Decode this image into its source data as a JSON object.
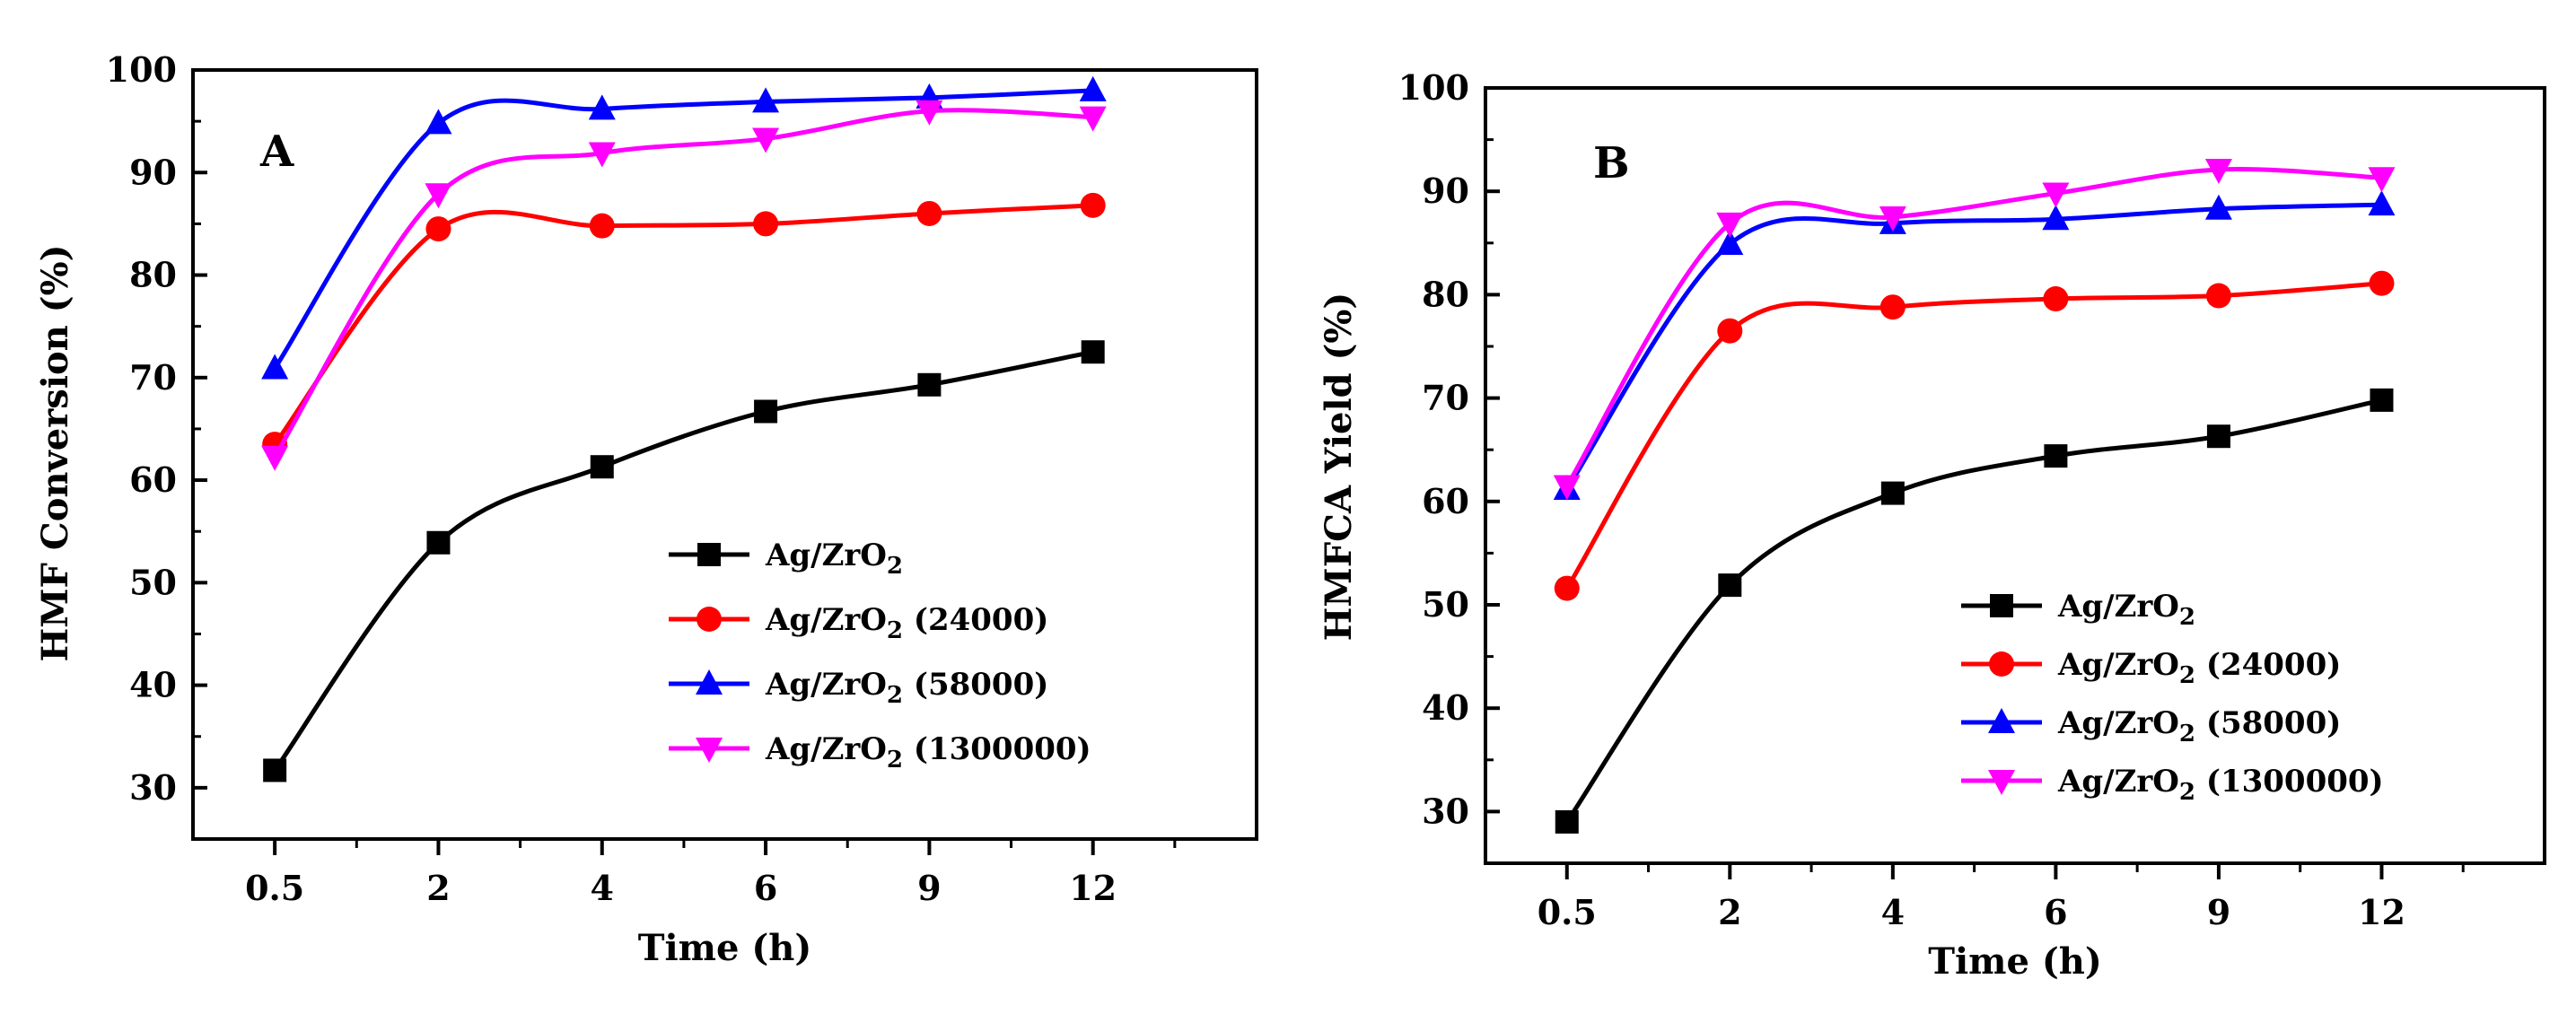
{
  "chart_data": [
    {
      "type": "line",
      "panel_label": "A",
      "title": "",
      "xlabel": "Time (h)",
      "ylabel": "HMF Conversion (%)",
      "categories": [
        "0.5",
        "2",
        "4",
        "6",
        "9",
        "12"
      ],
      "ylim": [
        25,
        100
      ],
      "yticks": [
        30,
        40,
        50,
        60,
        70,
        80,
        90,
        100
      ],
      "legend_position": "bottom-right",
      "series": [
        {
          "name": "Ag/ZrO2",
          "base": "Ag/ZrO",
          "sub": "2",
          "suffix": "",
          "color": "#000000",
          "marker": "square",
          "values": [
            31.7,
            53.9,
            61.3,
            66.7,
            69.3,
            72.5
          ]
        },
        {
          "name": "Ag/ZrO2 (24000)",
          "base": "Ag/ZrO",
          "sub": "2",
          "suffix": " (24000)",
          "color": "#ff0000",
          "marker": "circle",
          "values": [
            63.5,
            84.5,
            84.8,
            85.0,
            86.0,
            86.8
          ]
        },
        {
          "name": "Ag/ZrO2 (58000)",
          "base": "Ag/ZrO",
          "sub": "2",
          "suffix": " (58000)",
          "color": "#0000ff",
          "marker": "triangle-up",
          "values": [
            70.9,
            94.8,
            96.2,
            96.9,
            97.3,
            98.0
          ]
        },
        {
          "name": "Ag/ZrO2 (1300000)",
          "base": "Ag/ZrO",
          "sub": "2",
          "suffix": " (1300000)",
          "color": "#ff00ff",
          "marker": "triangle-down",
          "values": [
            62.3,
            87.9,
            91.9,
            93.3,
            96.0,
            95.4
          ]
        }
      ]
    },
    {
      "type": "line",
      "panel_label": "B",
      "title": "",
      "xlabel": "Time (h)",
      "ylabel": "HMFCA Yield (%)",
      "categories": [
        "0.5",
        "2",
        "4",
        "6",
        "9",
        "12"
      ],
      "ylim": [
        25,
        100
      ],
      "yticks": [
        30,
        40,
        50,
        60,
        70,
        80,
        90,
        100
      ],
      "legend_position": "bottom-right",
      "series": [
        {
          "name": "Ag/ZrO2",
          "base": "Ag/ZrO",
          "sub": "2",
          "suffix": "",
          "color": "#000000",
          "marker": "square",
          "values": [
            29.0,
            51.9,
            60.8,
            64.4,
            66.3,
            69.8
          ]
        },
        {
          "name": "Ag/ZrO2 (24000)",
          "base": "Ag/ZrO",
          "sub": "2",
          "suffix": " (24000)",
          "color": "#ff0000",
          "marker": "circle",
          "values": [
            51.6,
            76.5,
            78.8,
            79.6,
            79.9,
            81.1
          ]
        },
        {
          "name": "Ag/ZrO2 (58000)",
          "base": "Ag/ZrO",
          "sub": "2",
          "suffix": " (58000)",
          "color": "#0000ff",
          "marker": "triangle-up",
          "values": [
            61.2,
            84.9,
            86.9,
            87.3,
            88.3,
            88.7
          ]
        },
        {
          "name": "Ag/ZrO2 (1300000)",
          "base": "Ag/ZrO",
          "sub": "2",
          "suffix": " (1300000)",
          "color": "#ff00ff",
          "marker": "triangle-down",
          "values": [
            61.5,
            86.9,
            87.5,
            89.8,
            92.1,
            91.3
          ]
        }
      ]
    }
  ]
}
